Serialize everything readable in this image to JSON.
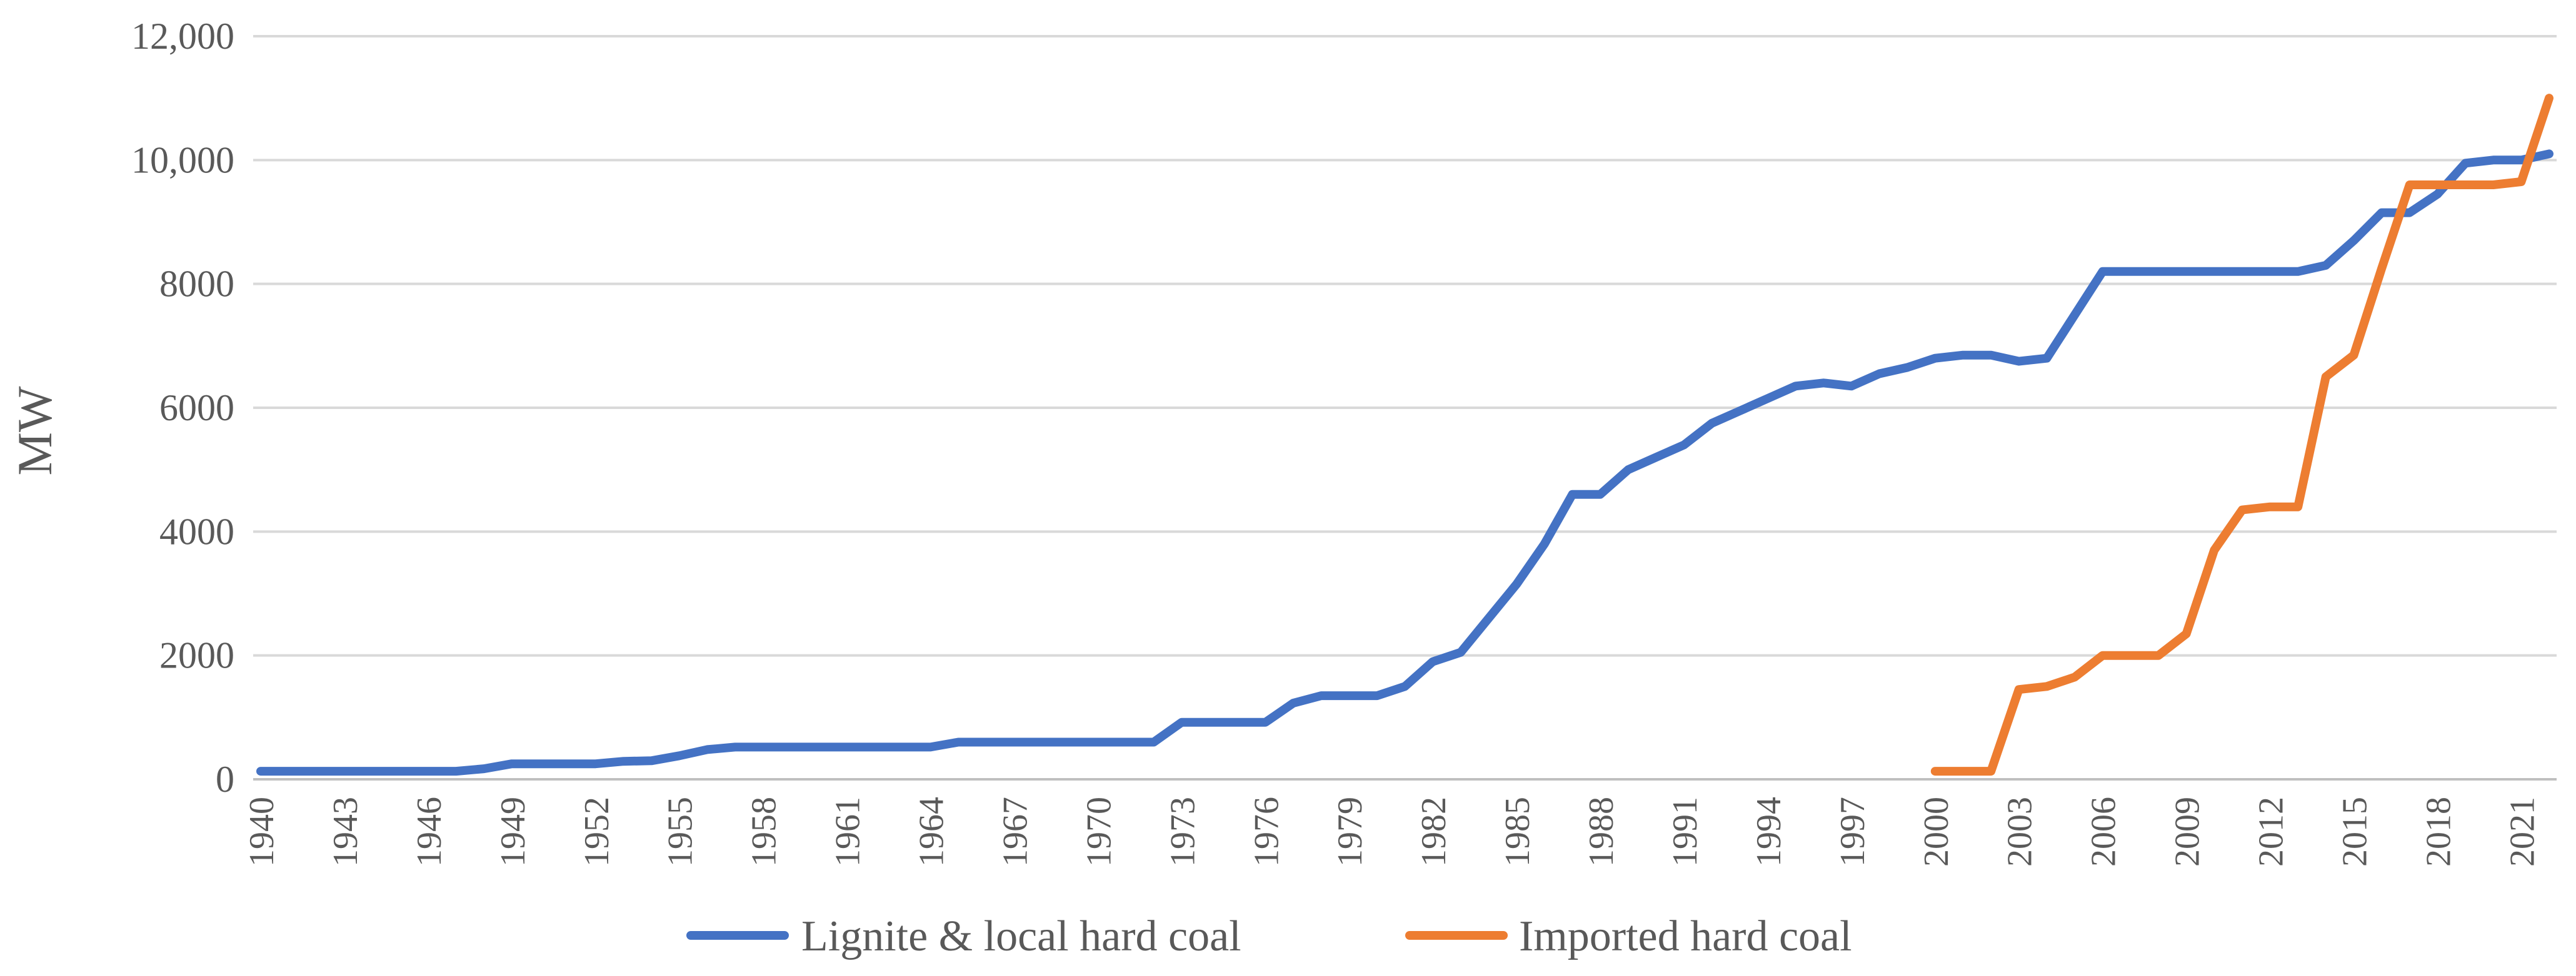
{
  "chart_data": {
    "type": "line",
    "title": "",
    "xlabel": "",
    "ylabel": "MW",
    "ylim": [
      0,
      12000
    ],
    "yticks": [
      0,
      2000,
      4000,
      6000,
      8000,
      10000,
      12000
    ],
    "ytick_labels": [
      "0",
      "2000",
      "4000",
      "6000",
      "8000",
      "10,000",
      "12,000"
    ],
    "xlim": [
      1940,
      2022
    ],
    "xtick_labels": [
      "1940",
      "1943",
      "1946",
      "1949",
      "1952",
      "1955",
      "1958",
      "1961",
      "1964",
      "1967",
      "1970",
      "1973",
      "1976",
      "1979",
      "1982",
      "1985",
      "1988",
      "1991",
      "1994",
      "1997",
      "2000",
      "2003",
      "2006",
      "2009",
      "2012",
      "2015",
      "2018",
      "2021"
    ],
    "grid": true,
    "legend_position": "bottom",
    "series": [
      {
        "name": "Lignite & local hard coal",
        "color": "#4472c4",
        "x": [
          1940,
          1941,
          1942,
          1943,
          1944,
          1945,
          1946,
          1947,
          1948,
          1949,
          1950,
          1951,
          1952,
          1953,
          1954,
          1955,
          1956,
          1957,
          1958,
          1959,
          1960,
          1961,
          1962,
          1963,
          1964,
          1965,
          1966,
          1967,
          1968,
          1969,
          1970,
          1971,
          1972,
          1973,
          1974,
          1975,
          1976,
          1977,
          1978,
          1979,
          1980,
          1981,
          1982,
          1983,
          1984,
          1985,
          1986,
          1987,
          1988,
          1989,
          1990,
          1991,
          1992,
          1993,
          1994,
          1995,
          1996,
          1997,
          1998,
          1999,
          2000,
          2001,
          2002,
          2003,
          2004,
          2005,
          2006,
          2007,
          2008,
          2009,
          2010,
          2011,
          2012,
          2013,
          2014,
          2015,
          2016,
          2017,
          2018,
          2019,
          2020,
          2021,
          2022
        ],
        "values": [
          130,
          130,
          130,
          130,
          130,
          130,
          130,
          130,
          170,
          250,
          250,
          250,
          250,
          290,
          300,
          380,
          480,
          520,
          520,
          520,
          520,
          520,
          520,
          520,
          520,
          600,
          600,
          600,
          600,
          600,
          600,
          600,
          600,
          920,
          920,
          920,
          920,
          1230,
          1350,
          1350,
          1350,
          1500,
          1900,
          2050,
          2600,
          3150,
          3800,
          4600,
          4600,
          5000,
          5200,
          5400,
          5750,
          5950,
          6150,
          6350,
          6400,
          6350,
          6550,
          6650,
          6800,
          6850,
          6850,
          6750,
          6800,
          7500,
          8200,
          8200,
          8200,
          8200,
          8200,
          8200,
          8200,
          8200,
          8300,
          8700,
          9150,
          9150,
          9450,
          9950,
          10000,
          10000,
          10100
        ]
      },
      {
        "name": "Imported hard coal",
        "color": "#ed7d31",
        "x": [
          2000,
          2001,
          2002,
          2003,
          2004,
          2005,
          2006,
          2007,
          2008,
          2009,
          2010,
          2011,
          2012,
          2013,
          2014,
          2015,
          2016,
          2017,
          2018,
          2019,
          2020,
          2021,
          2022
        ],
        "values": [
          130,
          130,
          130,
          1450,
          1500,
          1650,
          2000,
          2000,
          2000,
          2350,
          3700,
          4350,
          4400,
          4400,
          6500,
          6850,
          8250,
          9600,
          9600,
          9600,
          9600,
          9650,
          11000
        ]
      }
    ]
  }
}
